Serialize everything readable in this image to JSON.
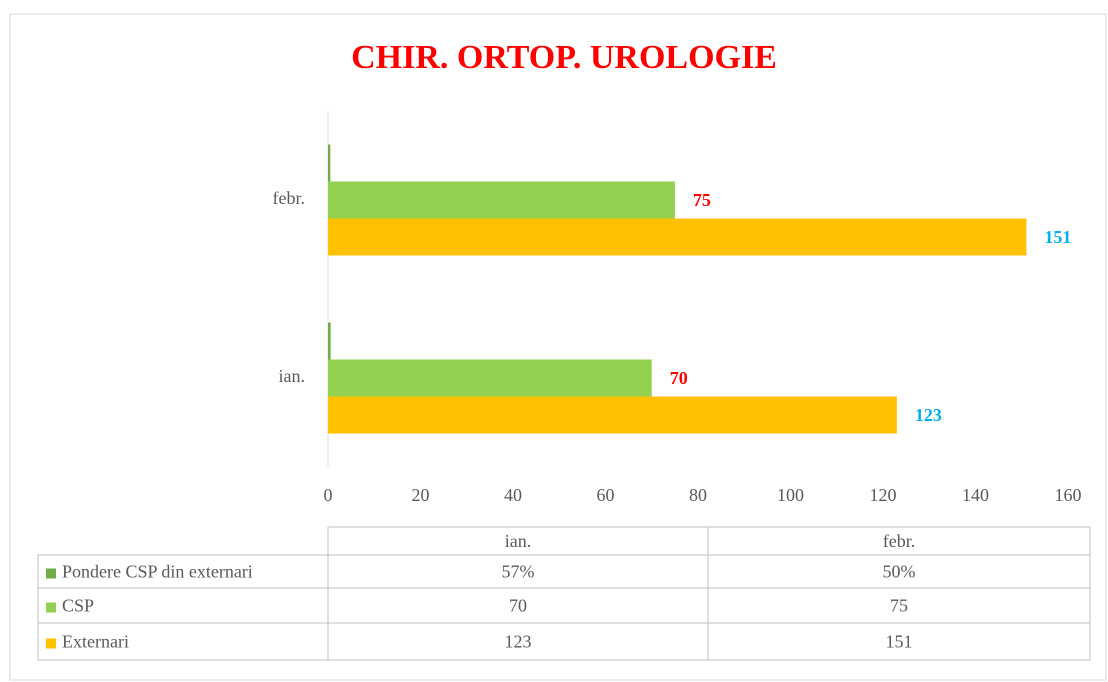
{
  "chart_data": {
    "type": "bar",
    "orientation": "horizontal",
    "title": "CHIR. ORTOP. UROLOGIE",
    "categories": [
      "ian.",
      "febr."
    ],
    "series": [
      {
        "name": "Pondere CSP din externari",
        "color": "#70ad47",
        "values": [
          0.57,
          0.5
        ],
        "value_labels": [
          "57%",
          "50%"
        ]
      },
      {
        "name": "CSP",
        "color": "#92d050",
        "values": [
          70,
          75
        ],
        "label_color": "#ff0000"
      },
      {
        "name": "Externari",
        "color": "#ffc000",
        "values": [
          123,
          151
        ],
        "label_color": "#00b0f0"
      }
    ],
    "xlim": [
      0,
      160
    ],
    "xticks": [
      0,
      20,
      40,
      60,
      80,
      100,
      120,
      140,
      160
    ],
    "grid": false,
    "data_table": true
  }
}
